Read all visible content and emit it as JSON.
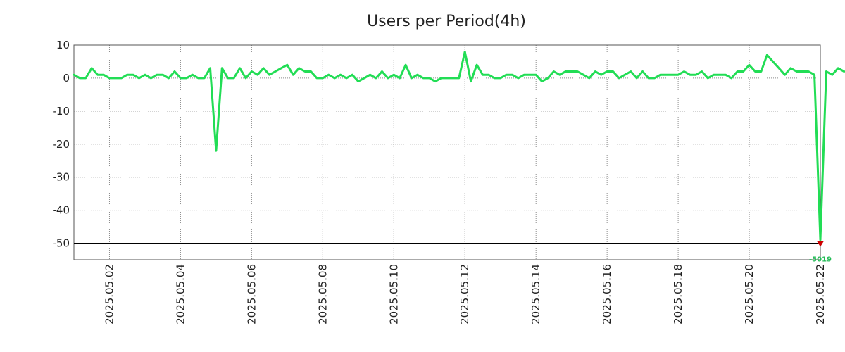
{
  "chart_data": {
    "type": "line",
    "title": "Users per Period(4h)",
    "xlabel": "",
    "ylabel": "",
    "ylim": [
      -55,
      10
    ],
    "yticks": [
      10,
      0,
      -10,
      -20,
      -30,
      -40,
      -50
    ],
    "reference_line": -50,
    "x_start": "2025.05.01",
    "x_end": "2025.05.22",
    "x_period_hours": 4,
    "xticks": [
      "2025.05.02",
      "2025.05.04",
      "2025.05.06",
      "2025.05.08",
      "2025.05.10",
      "2025.05.12",
      "2025.05.14",
      "2025.05.16",
      "2025.05.18",
      "2025.05.20",
      "2025.05.22"
    ],
    "grid": true,
    "series": [
      {
        "color": "#22dd55",
        "values": [
          1,
          0,
          0,
          3,
          1,
          1,
          0,
          0,
          0,
          1,
          1,
          0,
          1,
          0,
          1,
          1,
          0,
          2,
          0,
          0,
          1,
          0,
          0,
          3,
          -22,
          3,
          0,
          0,
          3,
          0,
          2,
          1,
          3,
          1,
          2,
          3,
          4,
          1,
          3,
          2,
          2,
          0,
          0,
          1,
          0,
          1,
          0,
          1,
          -1,
          0,
          1,
          0,
          2,
          0,
          1,
          0,
          4,
          0,
          1,
          0,
          0,
          -1,
          0,
          0,
          0,
          0,
          8,
          -1,
          4,
          1,
          1,
          0,
          0,
          1,
          1,
          0,
          1,
          1,
          1,
          -1,
          0,
          2,
          1,
          2,
          2,
          2,
          1,
          0,
          2,
          1,
          2,
          2,
          0,
          1,
          2,
          0,
          2,
          0,
          0,
          1,
          1,
          1,
          1,
          2,
          1,
          1,
          2,
          0,
          1,
          1,
          1,
          0,
          2,
          2,
          4,
          2,
          2,
          7,
          5,
          3,
          1,
          3,
          2,
          2,
          2,
          1,
          -49,
          2,
          1,
          3,
          2
        ]
      }
    ],
    "annotation": {
      "text": "-5019",
      "marker_color": "#cc0000",
      "text_color": "#22bb55"
    }
  }
}
